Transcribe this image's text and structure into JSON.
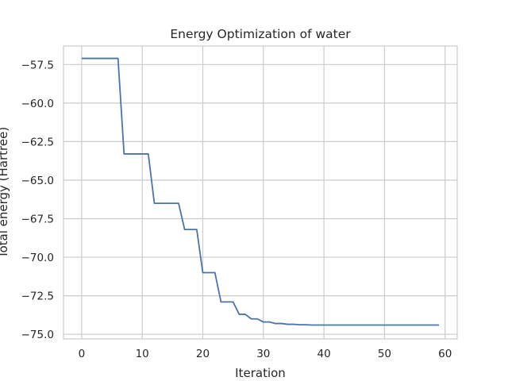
{
  "chart_data": {
    "type": "line",
    "title": "Energy Optimization of water",
    "xlabel": "Iteration",
    "ylabel": "Total energy (Hartree)",
    "xlim": [
      -3,
      62
    ],
    "ylim": [
      -75.3,
      -56.3
    ],
    "xticks": [
      0,
      10,
      20,
      30,
      40,
      50,
      60
    ],
    "yticks": [
      -57.5,
      -60.0,
      -62.5,
      -65.0,
      -67.5,
      -70.0,
      -72.5,
      -75.0
    ],
    "xtick_labels": [
      "0",
      "10",
      "20",
      "30",
      "40",
      "50",
      "60"
    ],
    "ytick_labels": [
      "−57.5",
      "−60.0",
      "−62.5",
      "−65.0",
      "−67.5",
      "−70.0",
      "−72.5",
      "−75.0"
    ],
    "grid": true,
    "series": [
      {
        "color": "#4c72b0",
        "x": [
          0,
          1,
          2,
          3,
          4,
          5,
          6,
          7,
          8,
          9,
          10,
          11,
          12,
          13,
          14,
          15,
          16,
          17,
          18,
          19,
          20,
          21,
          22,
          23,
          24,
          25,
          26,
          27,
          28,
          29,
          30,
          31,
          32,
          33,
          34,
          35,
          36,
          37,
          38,
          39,
          40,
          41,
          42,
          43,
          44,
          45,
          46,
          47,
          48,
          49,
          50,
          51,
          52,
          53,
          54,
          55,
          56,
          57,
          58,
          59
        ],
        "y": [
          -57.1,
          -57.1,
          -57.1,
          -57.1,
          -57.1,
          -57.1,
          -57.1,
          -63.3,
          -63.3,
          -63.3,
          -63.3,
          -63.3,
          -66.5,
          -66.5,
          -66.5,
          -66.5,
          -66.5,
          -68.2,
          -68.2,
          -68.2,
          -71.0,
          -71.0,
          -71.0,
          -72.9,
          -72.9,
          -72.9,
          -73.7,
          -73.7,
          -74.0,
          -74.0,
          -74.2,
          -74.2,
          -74.3,
          -74.3,
          -74.35,
          -74.35,
          -74.38,
          -74.38,
          -74.4,
          -74.4,
          -74.4,
          -74.4,
          -74.4,
          -74.4,
          -74.4,
          -74.4,
          -74.4,
          -74.4,
          -74.4,
          -74.4,
          -74.4,
          -74.4,
          -74.4,
          -74.4,
          -74.4,
          -74.4,
          -74.4,
          -74.4,
          -74.4,
          -74.4
        ]
      }
    ]
  }
}
